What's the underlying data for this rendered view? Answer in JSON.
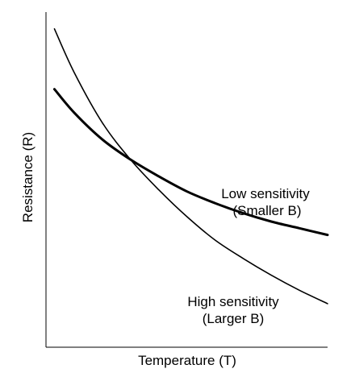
{
  "chart_data": {
    "type": "line",
    "xlabel": "Temperature (T)",
    "ylabel": "Resistance (R)",
    "axis_color": "#000000",
    "annotations": [
      {
        "lines": [
          "Low sensitivity",
          "(Smaller B)"
        ],
        "series": "low"
      },
      {
        "lines": [
          "High sensitivity",
          "(Larger B)"
        ],
        "series": "high"
      }
    ],
    "series": [
      {
        "id": "low",
        "style": "thick",
        "color": "#000000",
        "x": [
          0.03,
          0.1,
          0.2,
          0.3,
          0.4,
          0.5,
          0.6,
          0.7,
          0.8,
          0.9,
          1.0
        ],
        "y": [
          0.77,
          0.7,
          0.62,
          0.56,
          0.51,
          0.465,
          0.43,
          0.4,
          0.375,
          0.355,
          0.335
        ]
      },
      {
        "id": "high",
        "style": "thin",
        "color": "#000000",
        "x": [
          0.03,
          0.1,
          0.2,
          0.3,
          0.4,
          0.5,
          0.6,
          0.7,
          0.8,
          0.9,
          1.0
        ],
        "y": [
          0.95,
          0.82,
          0.67,
          0.56,
          0.47,
          0.39,
          0.32,
          0.265,
          0.215,
          0.17,
          0.13
        ]
      }
    ]
  }
}
